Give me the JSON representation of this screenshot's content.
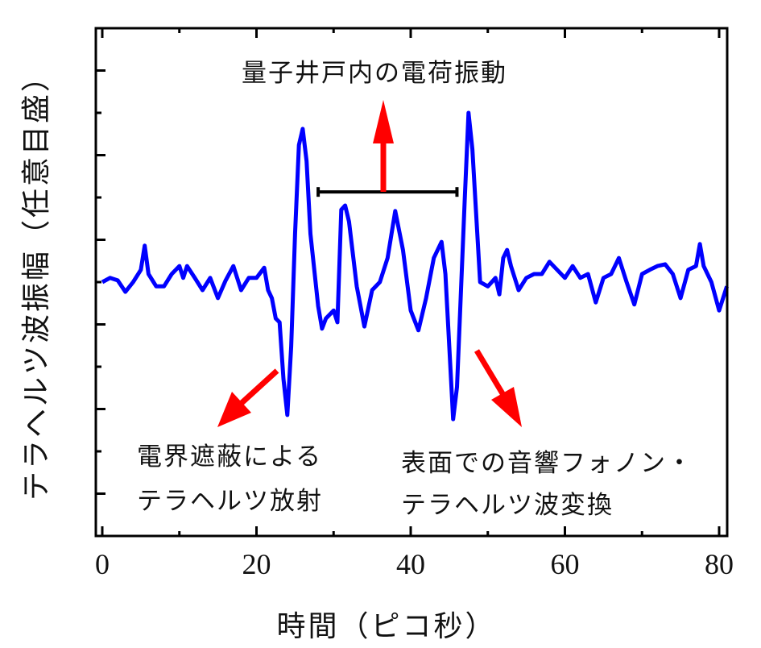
{
  "chart_data": {
    "type": "line",
    "title": "",
    "xlabel": "時間（ピコ秒）",
    "ylabel": "テラヘルツ波振幅（任意目盛）",
    "xlim": [
      -1,
      81
    ],
    "ylim": [
      -6,
      6
    ],
    "xticks": [
      0,
      20,
      40,
      60,
      80
    ],
    "x_minor_ticks": [
      10,
      30,
      50,
      70
    ],
    "yticks_unlabeled": [
      -5,
      -4,
      -3,
      -2,
      -1,
      0,
      1,
      2,
      3,
      4,
      5
    ],
    "grid": false,
    "series": [
      {
        "name": "テラヘルツ波",
        "color": "#0000ff",
        "x": [
          0,
          1,
          2,
          3,
          4,
          5,
          5.5,
          6,
          7,
          8,
          9,
          10,
          10.5,
          11,
          12,
          13,
          14,
          15,
          16,
          17,
          18,
          19,
          20,
          21,
          21.5,
          22,
          22.5,
          23,
          23.5,
          24,
          24.5,
          25,
          25.5,
          26,
          26.5,
          27,
          28,
          28.5,
          29,
          30,
          30.5,
          31,
          31.5,
          32,
          33,
          34,
          35,
          36,
          37,
          38,
          39,
          40,
          41,
          42,
          43,
          44,
          44.5,
          45,
          45.5,
          46,
          47,
          47.5,
          48,
          49,
          50,
          51,
          51.5,
          52,
          52.5,
          53,
          54,
          55,
          56,
          57,
          58,
          59,
          60,
          61,
          62,
          63,
          64,
          65,
          66,
          67,
          68,
          69,
          70,
          71,
          72,
          73,
          74,
          75,
          76,
          77,
          77.5,
          78,
          79,
          80,
          81
        ],
        "y": [
          0,
          0.1,
          0.04,
          -0.23,
          0,
          0.29,
          0.86,
          0.19,
          -0.1,
          -0.1,
          0.19,
          0.38,
          0.1,
          0.38,
          0.1,
          -0.19,
          0.1,
          -0.38,
          0.04,
          0.38,
          -0.19,
          0.1,
          0.1,
          0.34,
          -0.19,
          -0.38,
          -0.86,
          -0.95,
          -2.29,
          -3.14,
          -1.52,
          1.14,
          3.24,
          3.62,
          2.86,
          1.14,
          -0.57,
          -1.1,
          -0.86,
          -0.67,
          -0.95,
          1.71,
          1.81,
          1.43,
          -0.1,
          -1.05,
          -0.19,
          0,
          0.57,
          1.68,
          0.76,
          -0.67,
          -1.14,
          -0.38,
          0.57,
          0.95,
          0.19,
          -1.52,
          -3.24,
          -2.48,
          1.9,
          4.0,
          3.14,
          0,
          -0.1,
          0.1,
          -0.29,
          0.57,
          0.76,
          0.38,
          -0.19,
          0.1,
          0.19,
          0.19,
          0.48,
          0.29,
          0.1,
          0.38,
          0.1,
          0.19,
          -0.48,
          0.1,
          0.19,
          0.57,
          0,
          -0.53,
          0.19,
          0.29,
          0.38,
          0.42,
          0.19,
          -0.38,
          0.29,
          0.38,
          0.9,
          0.38,
          0,
          -0.67,
          -0.1
        ]
      }
    ],
    "annotations": {
      "bracket_range_ps": [
        28,
        46
      ],
      "top": "量子井戸内の電荷振動",
      "left_line1": "電界遮蔽による",
      "left_line2": "テラヘルツ放射",
      "right_line1": "表面での音響フォノン・",
      "right_line2": "テラヘルツ波変換"
    },
    "arrow_color": "#ff0000"
  }
}
